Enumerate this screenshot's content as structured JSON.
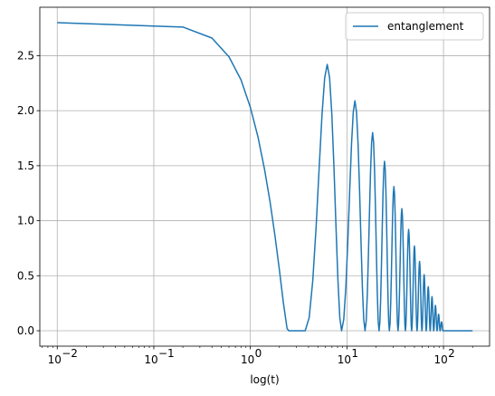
{
  "chart_data": {
    "type": "line",
    "xlabel": "log(t)",
    "ylabel": "",
    "x_scale": "log",
    "xlim": [
      0.0066,
      300
    ],
    "ylim": [
      -0.14,
      2.94
    ],
    "grid": true,
    "legend_position": "top-right",
    "x_ticks": [
      {
        "value": 0.01,
        "base": "10",
        "exp": "−2"
      },
      {
        "value": 0.1,
        "base": "10",
        "exp": "−1"
      },
      {
        "value": 1,
        "base": "10",
        "exp": "0"
      },
      {
        "value": 10,
        "base": "10",
        "exp": "1"
      },
      {
        "value": 100,
        "base": "10",
        "exp": "2"
      }
    ],
    "y_ticks": [
      {
        "value": 0.0,
        "label": "0.0"
      },
      {
        "value": 0.5,
        "label": "0.5"
      },
      {
        "value": 1.0,
        "label": "1.0"
      },
      {
        "value": 1.5,
        "label": "1.5"
      },
      {
        "value": 2.0,
        "label": "2.0"
      },
      {
        "value": 2.5,
        "label": "2.5"
      }
    ],
    "series": [
      {
        "name": "entanglement",
        "color": "#1f77b4",
        "base_points": [
          [
            0.01,
            2.8
          ],
          [
            0.2,
            2.76
          ],
          [
            0.4,
            2.66
          ],
          [
            0.6,
            2.49
          ],
          [
            0.8,
            2.28
          ],
          [
            1.0,
            2.03
          ],
          [
            1.2,
            1.76
          ],
          [
            1.4,
            1.47
          ],
          [
            1.6,
            1.17
          ],
          [
            1.8,
            0.86
          ],
          [
            2.0,
            0.55
          ],
          [
            2.2,
            0.25
          ],
          [
            2.4,
            0.02
          ],
          [
            2.5,
            0.0
          ],
          [
            3.7,
            0.0
          ]
        ],
        "lobes": [
          {
            "start": 3.7,
            "peak": 6.3,
            "end": 8.8,
            "height": 2.42
          },
          {
            "start": 8.8,
            "peak": 12.5,
            "end": 15.4,
            "height": 2.09
          },
          {
            "start": 15.4,
            "peak": 18.5,
            "end": 21.5,
            "height": 1.8
          },
          {
            "start": 21.5,
            "peak": 24.5,
            "end": 27.5,
            "height": 1.54
          },
          {
            "start": 27.5,
            "peak": 30.8,
            "end": 33.8,
            "height": 1.31
          },
          {
            "start": 33.8,
            "peak": 37.2,
            "end": 40.3,
            "height": 1.11
          },
          {
            "start": 40.3,
            "peak": 43.6,
            "end": 46.8,
            "height": 0.92
          },
          {
            "start": 46.8,
            "peak": 50.0,
            "end": 53.2,
            "height": 0.77
          },
          {
            "start": 53.2,
            "peak": 56.5,
            "end": 59.8,
            "height": 0.63
          },
          {
            "start": 59.8,
            "peak": 63.0,
            "end": 66.2,
            "height": 0.51
          },
          {
            "start": 66.2,
            "peak": 69.5,
            "end": 72.8,
            "height": 0.4
          },
          {
            "start": 72.8,
            "peak": 76.0,
            "end": 79.2,
            "height": 0.31
          },
          {
            "start": 79.2,
            "peak": 82.5,
            "end": 85.8,
            "height": 0.23
          },
          {
            "start": 85.8,
            "peak": 89.0,
            "end": 92.2,
            "height": 0.15
          },
          {
            "start": 92.2,
            "peak": 95.5,
            "end": 98.8,
            "height": 0.08
          }
        ],
        "tail_points": [
          [
            98.8,
            0.0
          ],
          [
            200,
            0.0
          ]
        ]
      }
    ]
  }
}
